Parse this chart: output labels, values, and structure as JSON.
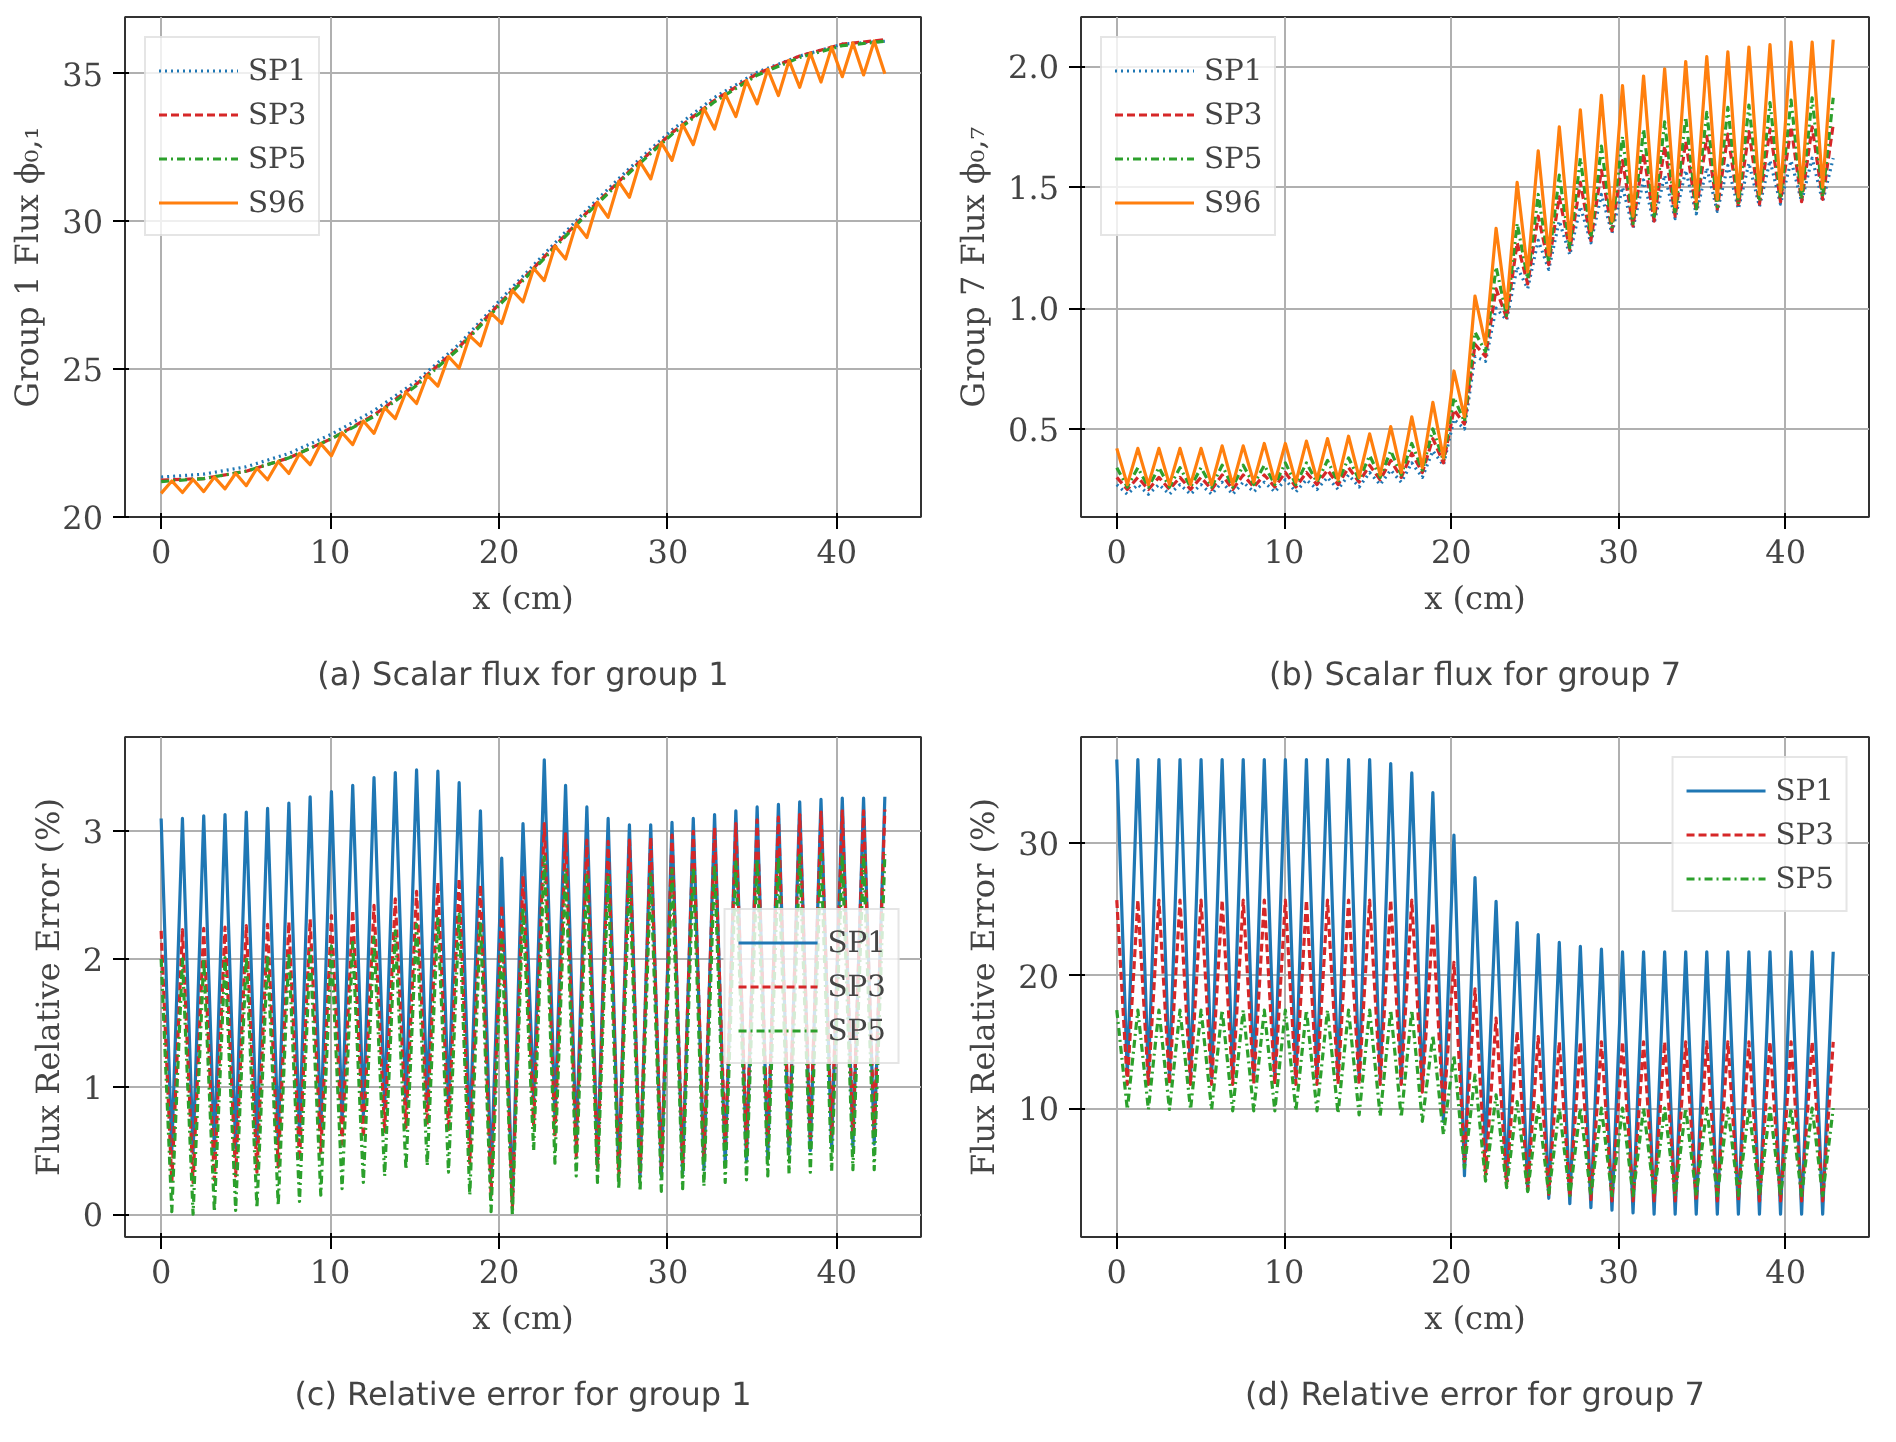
{
  "chart_data": [
    {
      "type": "line",
      "xlabel": "x (cm)",
      "ylabel": "Group 1 Flux ϕ₀,₁",
      "annotations": [
        "(a) Scalar flux for group 1"
      ],
      "legend": "top left",
      "grid": true,
      "xlim": [
        -2.14,
        44.98
      ],
      "xticks": [
        0,
        10,
        20,
        30,
        40
      ],
      "ylim": [
        20.0,
        36.92
      ],
      "yticks": [
        20,
        25,
        30,
        35
      ],
      "x": [
        0,
        0.63,
        1.26,
        1.89,
        2.52,
        3.15,
        3.78,
        4.41,
        5.04,
        5.67,
        6.3,
        6.93,
        7.56,
        8.19,
        8.82,
        9.45,
        10.08,
        10.71,
        11.34,
        11.97,
        12.6,
        13.23,
        13.86,
        14.49,
        15.12,
        15.75,
        16.38,
        17.01,
        17.64,
        18.27,
        18.9,
        19.53,
        20.16,
        20.79,
        21.42,
        22.05,
        22.68,
        23.31,
        23.94,
        24.57,
        25.2,
        25.83,
        26.46,
        27.09,
        27.72,
        28.35,
        28.98,
        29.61,
        30.24,
        30.87,
        31.5,
        32.13,
        32.76,
        33.39,
        34.02,
        34.65,
        35.28,
        35.91,
        36.54,
        37.17,
        37.8,
        38.43,
        39.06,
        39.69,
        40.32,
        40.95,
        41.58,
        42.21,
        42.84
      ],
      "series": [
        {
          "name": "SP1",
          "color": "#1f77b4",
          "line_style": "dotted",
          "x": [
            0,
            2.52,
            5.04,
            7.56,
            10.08,
            12.6,
            15.12,
            17.64,
            20.16,
            22.68,
            25.2,
            27.72,
            30.24,
            32.76,
            35.28,
            37.8,
            40.32,
            42.84
          ],
          "values": [
            21.35,
            21.45,
            21.7,
            22.15,
            22.8,
            23.6,
            24.6,
            25.85,
            27.4,
            28.9,
            30.4,
            31.8,
            33.1,
            34.2,
            35.05,
            35.6,
            36.0,
            36.1
          ]
        },
        {
          "name": "SP3",
          "color": "#d62728",
          "line_style": "dashed",
          "x": [
            0,
            2.52,
            5.04,
            7.56,
            10.08,
            12.6,
            15.12,
            17.64,
            20.16,
            22.68,
            25.2,
            27.72,
            30.24,
            32.76,
            35.28,
            37.8,
            40.32,
            42.84
          ],
          "values": [
            21.25,
            21.3,
            21.55,
            22.0,
            22.65,
            23.45,
            24.5,
            25.75,
            27.3,
            28.8,
            30.3,
            31.7,
            33.0,
            34.1,
            35.0,
            35.6,
            36.0,
            36.15
          ]
        },
        {
          "name": "SP5",
          "color": "#2ca02c",
          "line_style": "dashdot",
          "x": [
            0,
            2.52,
            5.04,
            7.56,
            10.08,
            12.6,
            15.12,
            17.64,
            20.16,
            22.68,
            25.2,
            27.72,
            30.24,
            32.76,
            35.28,
            37.8,
            40.32,
            42.84
          ],
          "values": [
            21.2,
            21.3,
            21.55,
            22.0,
            22.65,
            23.4,
            24.45,
            25.7,
            27.25,
            28.75,
            30.25,
            31.65,
            32.95,
            34.05,
            34.95,
            35.55,
            35.95,
            36.1
          ]
        },
        {
          "name": "S96",
          "color": "#ff7f0e",
          "line_style": "solid",
          "values": [
            20.8,
            21.22,
            20.83,
            21.27,
            20.86,
            21.35,
            20.95,
            21.48,
            21.06,
            21.65,
            21.26,
            21.88,
            21.47,
            22.15,
            21.77,
            22.48,
            22.07,
            22.85,
            22.45,
            23.25,
            22.83,
            23.7,
            23.33,
            24.23,
            23.84,
            24.8,
            24.43,
            25.43,
            25.04,
            26.13,
            25.79,
            26.9,
            26.55,
            27.67,
            27.28,
            28.42,
            28.0,
            29.17,
            28.73,
            29.92,
            29.46,
            30.65,
            30.14,
            31.35,
            30.82,
            32.02,
            31.44,
            32.67,
            32.07,
            33.28,
            32.6,
            33.82,
            33.13,
            34.32,
            33.55,
            34.77,
            33.98,
            35.15,
            34.26,
            35.45,
            34.54,
            35.7,
            34.72,
            35.9,
            34.9,
            36.04,
            34.96,
            36.11,
            35.0
          ]
        }
      ]
    },
    {
      "type": "line",
      "xlabel": "x (cm)",
      "ylabel": "Group 7 Flux ϕ₀,₇",
      "annotations": [
        "(b) Scalar flux for group 7"
      ],
      "legend": "top left",
      "grid": true,
      "xlim": [
        -2.14,
        44.98
      ],
      "xticks": [
        0,
        10,
        20,
        30,
        40
      ],
      "ylim": [
        0.136,
        2.204
      ],
      "yticks": [
        {
          "value": 0.5,
          "label": "0.5"
        },
        {
          "value": 1,
          "label": "1.0"
        },
        {
          "value": 1.5,
          "label": "1.5"
        },
        {
          "value": 2,
          "label": "2.0"
        }
      ],
      "x": [
        0,
        0.63,
        1.26,
        1.89,
        2.52,
        3.15,
        3.78,
        4.41,
        5.04,
        5.67,
        6.3,
        6.93,
        7.56,
        8.19,
        8.82,
        9.45,
        10.08,
        10.71,
        11.34,
        11.97,
        12.6,
        13.23,
        13.86,
        14.49,
        15.12,
        15.75,
        16.38,
        17.01,
        17.64,
        18.27,
        18.9,
        19.53,
        20.16,
        20.79,
        21.42,
        22.05,
        22.68,
        23.31,
        23.94,
        24.57,
        25.2,
        25.83,
        26.46,
        27.09,
        27.72,
        28.35,
        28.98,
        29.61,
        30.24,
        30.87,
        31.5,
        32.13,
        32.76,
        33.39,
        34.02,
        34.65,
        35.28,
        35.91,
        36.54,
        37.17,
        37.8,
        38.43,
        39.06,
        39.69,
        40.32,
        40.95,
        41.58,
        42.21,
        42.84
      ],
      "series": [
        {
          "name": "SP1",
          "color": "#1f77b4",
          "line_style": "dotted",
          "values": [
            0.27,
            0.23,
            0.27,
            0.23,
            0.27,
            0.23,
            0.27,
            0.23,
            0.27,
            0.23,
            0.28,
            0.23,
            0.28,
            0.24,
            0.28,
            0.24,
            0.29,
            0.24,
            0.29,
            0.25,
            0.3,
            0.25,
            0.31,
            0.26,
            0.32,
            0.27,
            0.33,
            0.28,
            0.36,
            0.3,
            0.41,
            0.35,
            0.54,
            0.5,
            0.8,
            0.78,
            1.0,
            0.95,
            1.17,
            1.08,
            1.28,
            1.16,
            1.36,
            1.22,
            1.42,
            1.27,
            1.47,
            1.31,
            1.5,
            1.33,
            1.53,
            1.35,
            1.55,
            1.37,
            1.57,
            1.39,
            1.58,
            1.4,
            1.59,
            1.41,
            1.6,
            1.42,
            1.61,
            1.43,
            1.61,
            1.44,
            1.62,
            1.44,
            1.62
          ]
        },
        {
          "name": "SP3",
          "color": "#d62728",
          "line_style": "dashed",
          "values": [
            0.3,
            0.25,
            0.3,
            0.25,
            0.3,
            0.25,
            0.3,
            0.25,
            0.3,
            0.25,
            0.31,
            0.25,
            0.31,
            0.26,
            0.31,
            0.26,
            0.32,
            0.26,
            0.32,
            0.27,
            0.33,
            0.27,
            0.34,
            0.28,
            0.35,
            0.29,
            0.37,
            0.3,
            0.4,
            0.32,
            0.46,
            0.36,
            0.58,
            0.52,
            0.85,
            0.8,
            1.08,
            0.96,
            1.27,
            1.1,
            1.38,
            1.18,
            1.46,
            1.24,
            1.52,
            1.28,
            1.57,
            1.32,
            1.61,
            1.34,
            1.64,
            1.36,
            1.67,
            1.38,
            1.69,
            1.4,
            1.71,
            1.41,
            1.72,
            1.42,
            1.73,
            1.43,
            1.74,
            1.44,
            1.75,
            1.44,
            1.75,
            1.45,
            1.76
          ]
        },
        {
          "name": "SP5",
          "color": "#2ca02c",
          "line_style": "dashdot",
          "values": [
            0.34,
            0.26,
            0.34,
            0.26,
            0.34,
            0.26,
            0.34,
            0.26,
            0.34,
            0.26,
            0.35,
            0.26,
            0.35,
            0.27,
            0.35,
            0.27,
            0.36,
            0.27,
            0.36,
            0.28,
            0.37,
            0.28,
            0.38,
            0.29,
            0.39,
            0.3,
            0.41,
            0.31,
            0.44,
            0.33,
            0.5,
            0.37,
            0.63,
            0.53,
            0.9,
            0.82,
            1.17,
            0.97,
            1.35,
            1.12,
            1.47,
            1.19,
            1.55,
            1.25,
            1.62,
            1.29,
            1.67,
            1.33,
            1.71,
            1.35,
            1.74,
            1.37,
            1.77,
            1.39,
            1.79,
            1.41,
            1.81,
            1.42,
            1.83,
            1.43,
            1.84,
            1.44,
            1.85,
            1.45,
            1.86,
            1.45,
            1.87,
            1.46,
            1.87
          ]
        },
        {
          "name": "S96",
          "color": "#ff7f0e",
          "line_style": "solid",
          "values": [
            0.42,
            0.27,
            0.42,
            0.27,
            0.42,
            0.27,
            0.42,
            0.27,
            0.42,
            0.27,
            0.43,
            0.27,
            0.43,
            0.28,
            0.44,
            0.28,
            0.44,
            0.28,
            0.45,
            0.29,
            0.46,
            0.29,
            0.47,
            0.3,
            0.48,
            0.31,
            0.51,
            0.32,
            0.55,
            0.34,
            0.61,
            0.38,
            0.74,
            0.55,
            1.05,
            0.85,
            1.33,
            1.0,
            1.52,
            1.15,
            1.65,
            1.22,
            1.75,
            1.28,
            1.82,
            1.32,
            1.88,
            1.36,
            1.92,
            1.38,
            1.96,
            1.4,
            1.99,
            1.42,
            2.02,
            1.44,
            2.04,
            1.45,
            2.06,
            1.46,
            2.08,
            1.47,
            2.09,
            1.48,
            2.1,
            1.49,
            2.1,
            1.5,
            2.11
          ]
        }
      ]
    },
    {
      "type": "line",
      "xlabel": "x (cm)",
      "ylabel": "Flux Relative Error (%)",
      "annotations": [
        "(c) Relative error for group 1"
      ],
      "legend": "right",
      "grid": true,
      "xlim": [
        -2.14,
        44.98
      ],
      "xticks": [
        0,
        10,
        20,
        30,
        40
      ],
      "ylim": [
        -0.178,
        3.738
      ],
      "yticks": [
        0,
        1,
        2,
        3
      ],
      "x": [
        0,
        0.63,
        1.26,
        1.89,
        2.52,
        3.15,
        3.78,
        4.41,
        5.04,
        5.67,
        6.3,
        6.93,
        7.56,
        8.19,
        8.82,
        9.45,
        10.08,
        10.71,
        11.34,
        11.97,
        12.6,
        13.23,
        13.86,
        14.49,
        15.12,
        15.75,
        16.38,
        17.01,
        17.64,
        18.27,
        18.9,
        19.53,
        20.16,
        20.79,
        21.42,
        22.05,
        22.68,
        23.31,
        23.94,
        24.57,
        25.2,
        25.83,
        26.46,
        27.09,
        27.72,
        28.35,
        28.98,
        29.61,
        30.24,
        30.87,
        31.5,
        32.13,
        32.76,
        33.39,
        34.02,
        34.65,
        35.28,
        35.91,
        36.54,
        37.17,
        37.8,
        38.43,
        39.06,
        39.69,
        40.32,
        40.95,
        41.58,
        42.21,
        42.84
      ],
      "series": [
        {
          "name": "SP1",
          "color": "#1f77b4",
          "line_style": "solid",
          "values": [
            3.1,
            0.5,
            3.1,
            0.48,
            3.12,
            0.5,
            3.13,
            0.52,
            3.15,
            0.55,
            3.18,
            0.58,
            3.22,
            0.62,
            3.27,
            0.67,
            3.31,
            0.72,
            3.36,
            0.78,
            3.42,
            0.83,
            3.46,
            0.87,
            3.48,
            0.88,
            3.47,
            0.85,
            3.38,
            0.6,
            3.16,
            0.3,
            2.79,
            0.1,
            3.06,
            0.9,
            3.56,
            0.75,
            3.36,
            0.55,
            3.19,
            0.42,
            3.1,
            0.35,
            3.05,
            0.3,
            3.05,
            0.3,
            3.07,
            0.32,
            3.1,
            0.35,
            3.13,
            0.38,
            3.16,
            0.42,
            3.19,
            0.45,
            3.21,
            0.48,
            3.23,
            0.5,
            3.25,
            0.52,
            3.26,
            0.53,
            3.26,
            0.55,
            3.27
          ]
        },
        {
          "name": "SP3",
          "color": "#d62728",
          "line_style": "dashed",
          "values": [
            2.22,
            0.25,
            2.23,
            0.25,
            2.24,
            0.27,
            2.25,
            0.3,
            2.26,
            0.33,
            2.27,
            0.37,
            2.29,
            0.42,
            2.31,
            0.48,
            2.34,
            0.55,
            2.38,
            0.6,
            2.42,
            0.65,
            2.47,
            0.68,
            2.53,
            0.7,
            2.6,
            0.65,
            2.63,
            0.4,
            2.58,
            0.15,
            2.42,
            0.05,
            2.65,
            0.7,
            3.06,
            0.6,
            2.98,
            0.45,
            2.93,
            0.35,
            2.92,
            0.3,
            2.93,
            0.32,
            2.95,
            0.36,
            2.97,
            0.4,
            3.0,
            0.45,
            3.03,
            0.5,
            3.06,
            0.53,
            3.09,
            0.56,
            3.11,
            0.58,
            3.13,
            0.6,
            3.15,
            0.62,
            3.16,
            0.63,
            3.16,
            0.64,
            3.17
          ]
        },
        {
          "name": "SP5",
          "color": "#2ca02c",
          "line_style": "dashdot",
          "values": [
            2.0,
            0.02,
            2.0,
            0.0,
            2.0,
            0.02,
            2.01,
            0.03,
            2.02,
            0.05,
            2.03,
            0.07,
            2.05,
            0.1,
            2.07,
            0.15,
            2.1,
            0.2,
            2.13,
            0.25,
            2.17,
            0.3,
            2.22,
            0.35,
            2.27,
            0.38,
            2.33,
            0.33,
            2.35,
            0.15,
            2.3,
            0.02,
            2.15,
            0.0,
            2.4,
            0.5,
            2.8,
            0.4,
            2.7,
            0.3,
            2.65,
            0.25,
            2.65,
            0.2,
            2.66,
            0.18,
            2.68,
            0.18,
            2.7,
            0.2,
            2.72,
            0.22,
            2.74,
            0.25,
            2.76,
            0.27,
            2.78,
            0.3,
            2.8,
            0.32,
            2.81,
            0.33,
            2.82,
            0.34,
            2.82,
            0.35,
            2.82,
            0.35,
            2.82
          ]
        }
      ]
    },
    {
      "type": "line",
      "xlabel": "x (cm)",
      "ylabel": "Flux Relative Error (%)",
      "annotations": [
        "(d) Relative error for group 7"
      ],
      "legend": "top right",
      "grid": true,
      "xlim": [
        -2.14,
        44.98
      ],
      "xticks": [
        0,
        10,
        20,
        30,
        40
      ],
      "ylim": [
        0.28,
        38.0
      ],
      "yticks": [
        10,
        20,
        30
      ],
      "x": [
        0,
        0.63,
        1.26,
        1.89,
        2.52,
        3.15,
        3.78,
        4.41,
        5.04,
        5.67,
        6.3,
        6.93,
        7.56,
        8.19,
        8.82,
        9.45,
        10.08,
        10.71,
        11.34,
        11.97,
        12.6,
        13.23,
        13.86,
        14.49,
        15.12,
        15.75,
        16.38,
        17.01,
        17.64,
        18.27,
        18.9,
        19.53,
        20.16,
        20.79,
        21.42,
        22.05,
        22.68,
        23.31,
        23.94,
        24.57,
        25.2,
        25.83,
        26.46,
        27.09,
        27.72,
        28.35,
        28.98,
        29.61,
        30.24,
        30.87,
        31.5,
        32.13,
        32.76,
        33.39,
        34.02,
        34.65,
        35.28,
        35.91,
        36.54,
        37.17,
        37.8,
        38.43,
        39.06,
        39.69,
        40.32,
        40.95,
        41.58,
        42.21,
        42.84
      ],
      "series": [
        {
          "name": "SP1",
          "color": "#1f77b4",
          "line_style": "solid",
          "values": [
            36.3,
            12.5,
            36.3,
            12.4,
            36.3,
            12.3,
            36.3,
            12.3,
            36.3,
            12.3,
            36.3,
            12.3,
            36.3,
            12.3,
            36.3,
            12.3,
            36.3,
            12.3,
            36.3,
            12.3,
            36.3,
            12.3,
            36.3,
            12.2,
            36.3,
            12.1,
            36.0,
            11.9,
            35.3,
            11.3,
            33.8,
            9.0,
            30.6,
            4.9,
            27.4,
            6.7,
            25.6,
            4.6,
            24.0,
            3.8,
            23.1,
            3.2,
            22.5,
            2.8,
            22.2,
            2.5,
            22.0,
            2.3,
            21.8,
            2.1,
            21.8,
            2.0,
            21.8,
            2.0,
            21.8,
            2.0,
            21.8,
            2.0,
            21.8,
            2.0,
            21.8,
            2.0,
            21.8,
            2.0,
            21.8,
            2.0,
            21.8,
            2.0,
            21.8
          ]
        },
        {
          "name": "SP3",
          "color": "#d62728",
          "line_style": "dashed",
          "values": [
            25.7,
            11.8,
            25.7,
            11.8,
            25.7,
            11.8,
            25.7,
            11.8,
            25.7,
            11.8,
            25.7,
            11.8,
            25.7,
            11.8,
            25.7,
            11.8,
            25.7,
            11.8,
            25.7,
            11.8,
            25.7,
            11.8,
            25.7,
            11.8,
            25.7,
            11.8,
            25.7,
            11.8,
            25.7,
            11.2,
            24.0,
            9.5,
            21.0,
            6.0,
            19.0,
            5.0,
            16.8,
            4.2,
            15.8,
            3.8,
            15.4,
            3.5,
            15.0,
            3.3,
            15.0,
            3.1,
            15.0,
            3.0,
            15.0,
            3.0,
            15.0,
            3.0,
            15.0,
            3.0,
            15.0,
            3.0,
            15.0,
            3.0,
            15.0,
            3.0,
            15.0,
            3.0,
            15.0,
            3.0,
            15.0,
            3.0,
            15.0,
            3.0,
            15.0
          ]
        },
        {
          "name": "SP5",
          "color": "#2ca02c",
          "line_style": "dashdot",
          "values": [
            17.4,
            9.9,
            17.4,
            9.9,
            17.4,
            9.9,
            17.4,
            9.9,
            17.4,
            9.9,
            17.4,
            9.8,
            17.4,
            9.8,
            17.4,
            9.8,
            17.4,
            9.8,
            17.4,
            9.8,
            17.4,
            9.6,
            17.4,
            9.5,
            17.4,
            9.4,
            17.4,
            9.3,
            17.4,
            9.0,
            15.5,
            8.0,
            14.0,
            5.5,
            12.5,
            4.5,
            11.0,
            4.0,
            10.5,
            3.7,
            10.2,
            3.5,
            10.0,
            3.4,
            10.0,
            3.4,
            10.0,
            3.4,
            10.0,
            3.4,
            10.0,
            3.4,
            10.0,
            3.4,
            10.0,
            3.4,
            10.0,
            3.4,
            10.0,
            3.4,
            10.0,
            3.4,
            10.0,
            3.4,
            10.0,
            3.4,
            10.0,
            3.4,
            10.0
          ]
        }
      ]
    }
  ]
}
